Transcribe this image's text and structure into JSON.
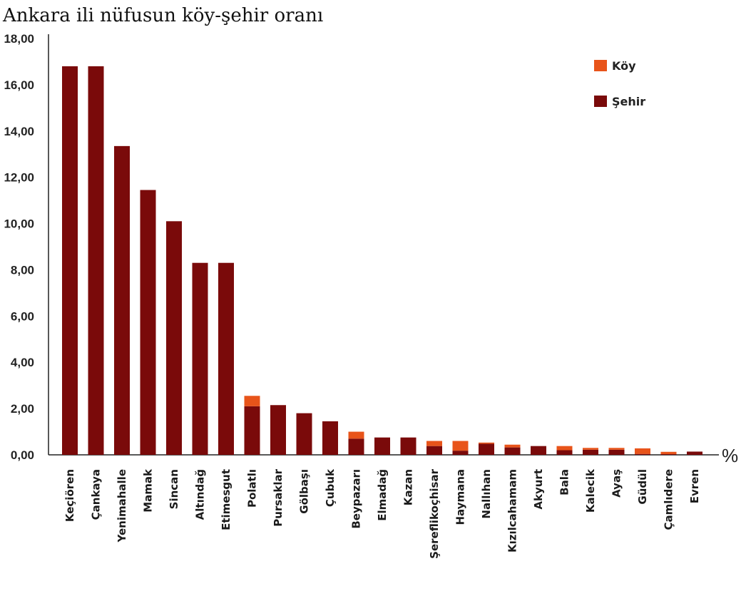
{
  "chart_data": {
    "type": "bar",
    "stacked": true,
    "title": "Ankara ili nüfusun köy-şehir oranı",
    "unit_label": "%",
    "ylim": [
      0,
      18
    ],
    "yticks": [
      "0,00",
      "2,00",
      "4,00",
      "6,00",
      "8,00",
      "10,00",
      "12,00",
      "14,00",
      "16,00",
      "18,00"
    ],
    "legend_position": "top-right",
    "categories": [
      "Keçiören",
      "Çankaya",
      "Yenimahalle",
      "Mamak",
      "Sincan",
      "Altındağ",
      "Etimesgut",
      "Polatlı",
      "Pursaklar",
      "Gölbaşı",
      "Çubuk",
      "Beypazarı",
      "Elmadağ",
      "Kazan",
      "Şereflikoçhisar",
      "Haymana",
      "Nallıhan",
      "Kızılcahamam",
      "Akyurt",
      "Bala",
      "Kalecik",
      "Ayaş",
      "Güdül",
      "Çamlıdere",
      "Evren"
    ],
    "series": [
      {
        "name": "Şehir",
        "color": "#7a0a0a",
        "values": [
          16.8,
          16.8,
          13.35,
          11.45,
          10.1,
          8.3,
          8.3,
          2.1,
          2.15,
          1.8,
          1.45,
          0.7,
          0.75,
          0.75,
          0.38,
          0.18,
          0.48,
          0.32,
          0.38,
          0.2,
          0.22,
          0.22,
          0.04,
          0.03,
          0.14
        ]
      },
      {
        "name": "Köy",
        "color": "#e8541a",
        "values": [
          0,
          0,
          0,
          0,
          0,
          0,
          0,
          0.45,
          0,
          0,
          0,
          0.3,
          0,
          0,
          0.22,
          0.42,
          0.05,
          0.12,
          0,
          0.18,
          0.08,
          0.08,
          0.24,
          0.1,
          0
        ]
      }
    ]
  }
}
